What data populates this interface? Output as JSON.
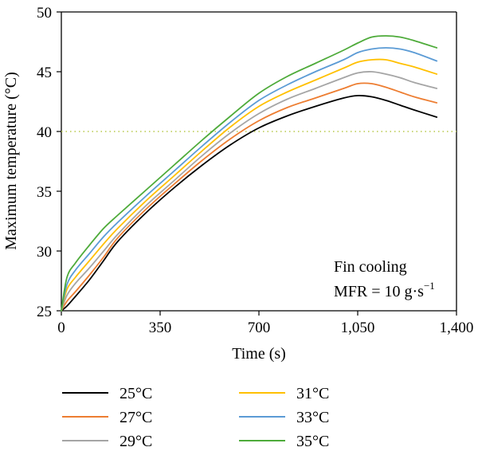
{
  "chart_data": {
    "type": "line",
    "xlabel": "Time (s)",
    "ylabel": "Maximum temperature (°C)",
    "xlim": [
      0,
      1400
    ],
    "ylim": [
      25,
      50
    ],
    "xticks": [
      0,
      350,
      700,
      1050,
      1400
    ],
    "xtick_labels": [
      "0",
      "350",
      "700",
      "1,050",
      "1,400"
    ],
    "yticks": [
      25,
      30,
      35,
      40,
      45,
      50
    ],
    "ytick_labels": [
      "25",
      "30",
      "35",
      "40",
      "45",
      "50"
    ],
    "reference_line": {
      "y": 40,
      "style": "dotted",
      "color": "#b8c94a"
    },
    "annotation": {
      "line1": "Fin cooling",
      "line2_prefix": "MFR = 10 g·s",
      "line2_exponent": "−1"
    },
    "legend_position": "bottom, two columns",
    "series": [
      {
        "name": "25°C",
        "color": "#000000",
        "x": [
          0,
          20,
          50,
          100,
          150,
          200,
          300,
          400,
          500,
          600,
          700,
          800,
          900,
          1000,
          1050,
          1100,
          1150,
          1200,
          1250,
          1330
        ],
        "y": [
          25.0,
          25.4,
          26.2,
          27.6,
          29.2,
          30.8,
          33.2,
          35.3,
          37.2,
          38.9,
          40.3,
          41.3,
          42.1,
          42.8,
          43.0,
          42.9,
          42.6,
          42.2,
          41.8,
          41.2
        ]
      },
      {
        "name": "27°C",
        "color": "#ed7d31",
        "x": [
          0,
          20,
          50,
          100,
          150,
          200,
          300,
          400,
          500,
          600,
          700,
          800,
          900,
          1000,
          1050,
          1100,
          1150,
          1200,
          1250,
          1330
        ],
        "y": [
          25.0,
          25.8,
          26.6,
          28.0,
          29.5,
          31.1,
          33.5,
          35.6,
          37.6,
          39.4,
          40.9,
          42.0,
          42.8,
          43.6,
          44.0,
          44.0,
          43.7,
          43.3,
          42.9,
          42.4
        ]
      },
      {
        "name": "29°C",
        "color": "#a5a5a5",
        "x": [
          0,
          20,
          50,
          100,
          150,
          200,
          300,
          400,
          500,
          600,
          700,
          800,
          900,
          1000,
          1050,
          1100,
          1150,
          1200,
          1250,
          1330
        ],
        "y": [
          25.0,
          26.3,
          27.3,
          28.6,
          30.0,
          31.4,
          33.8,
          35.9,
          38.0,
          39.9,
          41.5,
          42.7,
          43.6,
          44.5,
          44.9,
          45.0,
          44.8,
          44.5,
          44.1,
          43.6
        ]
      },
      {
        "name": "31°C",
        "color": "#ffc000",
        "x": [
          0,
          20,
          50,
          100,
          150,
          200,
          300,
          400,
          500,
          600,
          700,
          800,
          900,
          1000,
          1050,
          1100,
          1150,
          1200,
          1250,
          1330
        ],
        "y": [
          25.0,
          26.8,
          27.8,
          29.2,
          30.6,
          31.9,
          34.2,
          36.3,
          38.4,
          40.4,
          42.1,
          43.3,
          44.3,
          45.3,
          45.8,
          46.0,
          46.0,
          45.7,
          45.4,
          44.8
        ]
      },
      {
        "name": "33°C",
        "color": "#5b9bd5",
        "x": [
          0,
          20,
          50,
          100,
          150,
          200,
          300,
          400,
          500,
          600,
          700,
          800,
          900,
          1000,
          1050,
          1100,
          1150,
          1200,
          1250,
          1330
        ],
        "y": [
          25.0,
          27.2,
          28.4,
          29.8,
          31.2,
          32.4,
          34.6,
          36.7,
          38.8,
          40.8,
          42.6,
          43.9,
          45.0,
          46.0,
          46.6,
          46.9,
          47.0,
          46.9,
          46.6,
          45.9
        ]
      },
      {
        "name": "35°C",
        "color": "#4eab3a",
        "x": [
          0,
          20,
          50,
          100,
          150,
          200,
          300,
          400,
          500,
          600,
          700,
          800,
          900,
          1000,
          1050,
          1100,
          1150,
          1200,
          1250,
          1330
        ],
        "y": [
          25.0,
          27.8,
          29.0,
          30.5,
          31.9,
          33.0,
          35.1,
          37.2,
          39.3,
          41.3,
          43.2,
          44.6,
          45.7,
          46.8,
          47.4,
          47.9,
          48.0,
          47.9,
          47.6,
          47.0
        ]
      }
    ]
  }
}
